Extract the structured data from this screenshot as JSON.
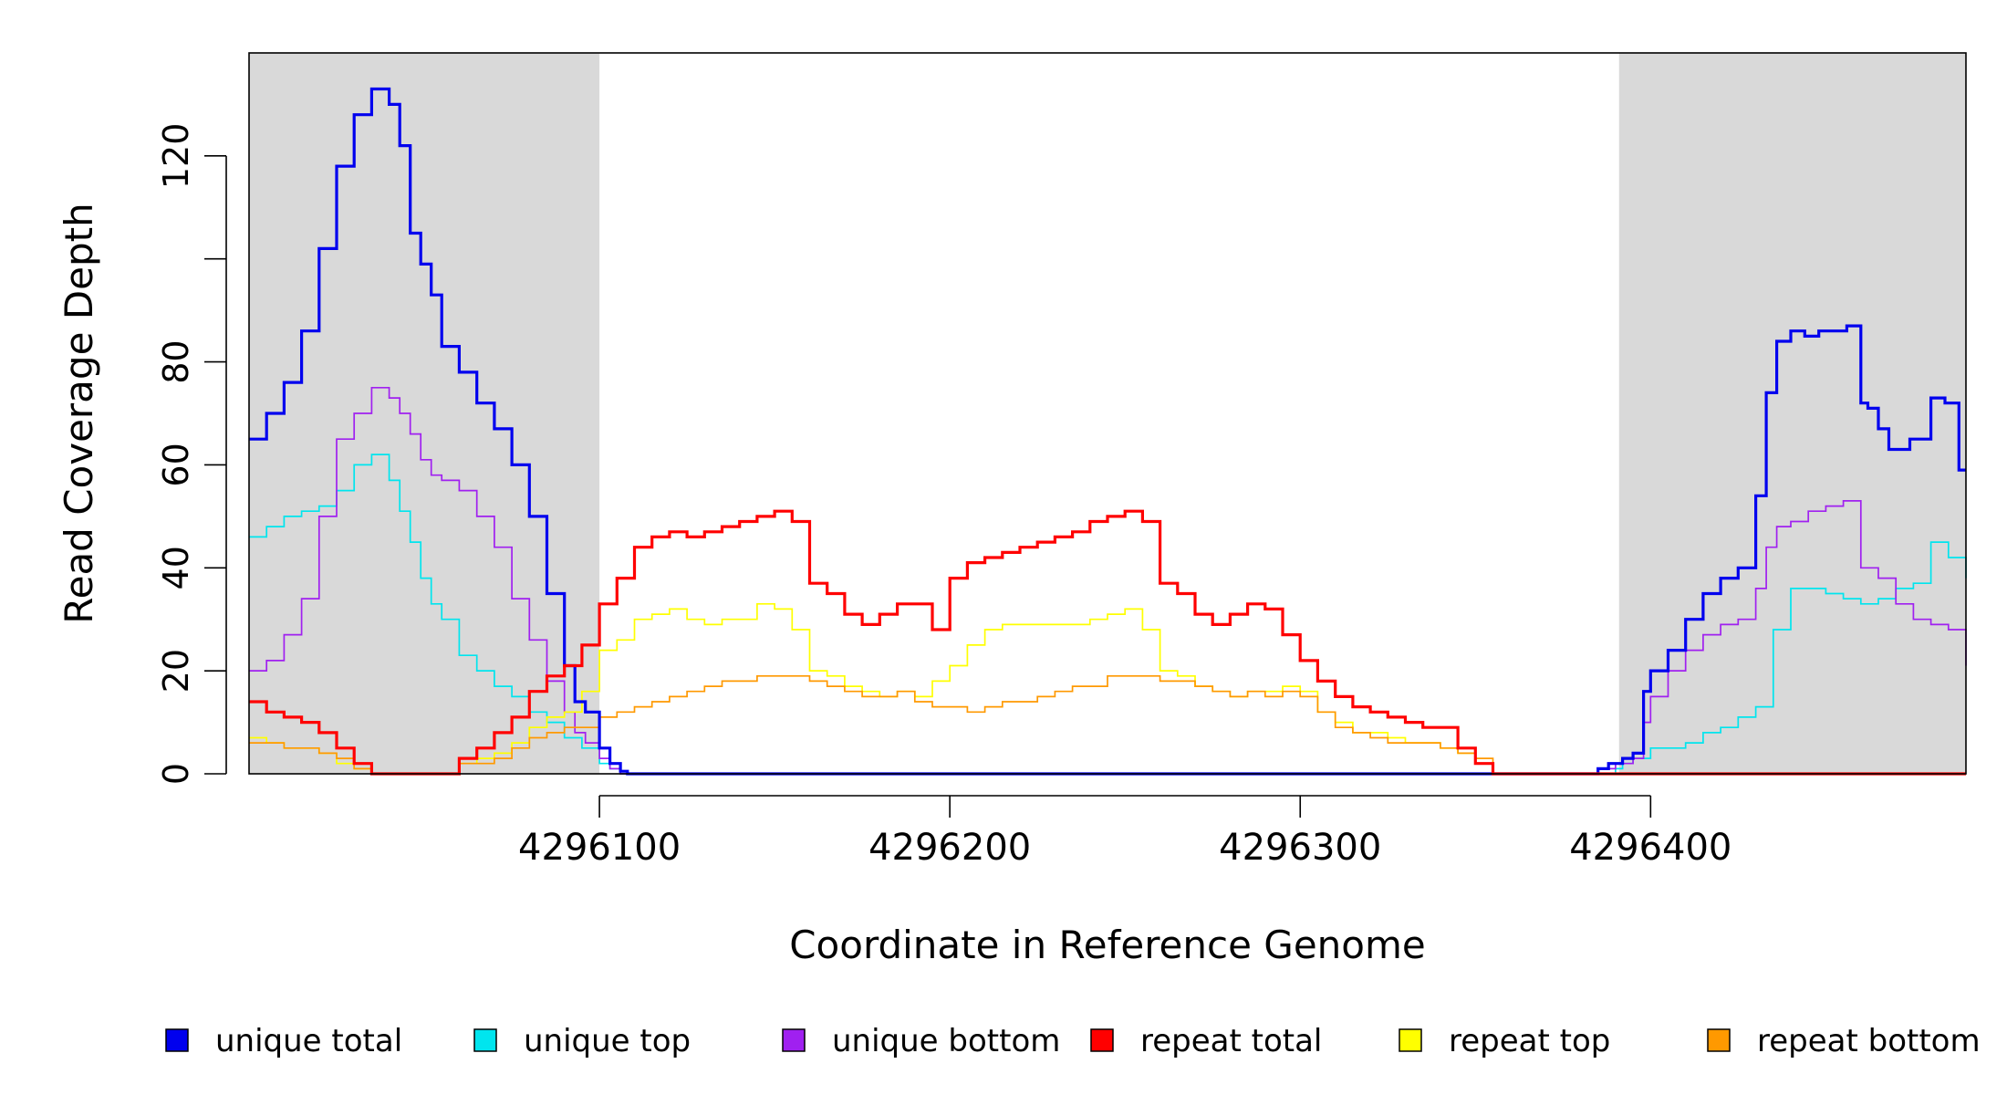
{
  "chart_data": {
    "type": "line",
    "title": "",
    "xlabel": "Coordinate in Reference Genome",
    "ylabel": "Read Coverage Depth",
    "xlim": [
      4296000,
      4296490
    ],
    "ylim": [
      0,
      140
    ],
    "x_ticks": [
      4296100,
      4296200,
      4296300,
      4296400
    ],
    "x_tick_labels": [
      "4296100",
      "4296200",
      "4296300",
      "4296400"
    ],
    "y_ticks": [
      0,
      20,
      40,
      60,
      80,
      100,
      120
    ],
    "y_tick_labels": [
      "0",
      "20",
      "40",
      "60",
      "80",
      "",
      "120"
    ],
    "shaded_regions": [
      {
        "x_start": 4296000,
        "x_end": 4296100,
        "color": "#d9d9d9"
      },
      {
        "x_start": 4296391,
        "x_end": 4296490,
        "color": "#d9d9d9"
      }
    ],
    "grid": false,
    "legend_position": "bottom",
    "series": [
      {
        "name": "unique total",
        "color": "#0000ee",
        "width": 3.2,
        "x": [
          4296000,
          4296005,
          4296010,
          4296015,
          4296020,
          4296025,
          4296030,
          4296035,
          4296040,
          4296043,
          4296046,
          4296049,
          4296052,
          4296055,
          4296060,
          4296065,
          4296070,
          4296075,
          4296080,
          4296085,
          4296090,
          4296093,
          4296096,
          4296100,
          4296103,
          4296106,
          4296108,
          4296110,
          4296112,
          4296115,
          4296385,
          4296388,
          4296392,
          4296395,
          4296398,
          4296400,
          4296405,
          4296410,
          4296415,
          4296420,
          4296425,
          4296430,
          4296433,
          4296436,
          4296440,
          4296444,
          4296448,
          4296452,
          4296456,
          4296460,
          4296462,
          4296465,
          4296468,
          4296471,
          4296474,
          4296477,
          4296480,
          4296484,
          4296488,
          4296490
        ],
        "y": [
          65,
          70,
          76,
          86,
          102,
          118,
          128,
          133,
          130,
          122,
          105,
          99,
          93,
          83,
          78,
          72,
          67,
          60,
          50,
          35,
          21,
          14,
          12,
          5,
          2,
          0.5,
          0,
          0,
          0,
          0,
          1,
          2,
          3,
          4,
          16,
          20,
          24,
          30,
          35,
          38,
          40,
          54,
          74,
          84,
          86,
          85,
          86,
          86,
          87,
          72,
          71,
          67,
          63,
          63,
          65,
          65,
          73,
          72,
          59,
          59
        ]
      },
      {
        "name": "unique top",
        "color": "#00e5ee",
        "width": 1.7,
        "x": [
          4296000,
          4296005,
          4296010,
          4296015,
          4296020,
          4296025,
          4296030,
          4296035,
          4296040,
          4296043,
          4296046,
          4296049,
          4296052,
          4296055,
          4296060,
          4296065,
          4296070,
          4296075,
          4296080,
          4296085,
          4296090,
          4296095,
          4296100,
          4296103,
          4296106,
          4296108,
          4296110,
          4296115,
          4296385,
          4296390,
          4296392,
          4296395,
          4296400,
          4296405,
          4296410,
          4296415,
          4296420,
          4296425,
          4296430,
          4296435,
          4296440,
          4296445,
          4296450,
          4296455,
          4296460,
          4296465,
          4296470,
          4296475,
          4296480,
          4296485,
          4296490
        ],
        "y": [
          46,
          48,
          50,
          51,
          52,
          55,
          60,
          62,
          57,
          51,
          45,
          38,
          33,
          30,
          23,
          20,
          17,
          15,
          12,
          10,
          7,
          5,
          2,
          1,
          0,
          0,
          0,
          0,
          0,
          1,
          2,
          3,
          5,
          5,
          6,
          8,
          9,
          11,
          13,
          28,
          36,
          36,
          35,
          34,
          33,
          34,
          36,
          37,
          45,
          42,
          38
        ]
      },
      {
        "name": "unique bottom",
        "color": "#a020f0",
        "width": 1.7,
        "x": [
          4296000,
          4296005,
          4296010,
          4296015,
          4296020,
          4296025,
          4296030,
          4296035,
          4296040,
          4296043,
          4296046,
          4296049,
          4296052,
          4296055,
          4296060,
          4296065,
          4296070,
          4296075,
          4296080,
          4296085,
          4296090,
          4296093,
          4296096,
          4296100,
          4296103,
          4296106,
          4296108,
          4296110,
          4296115,
          4296385,
          4296390,
          4296395,
          4296398,
          4296400,
          4296405,
          4296410,
          4296415,
          4296420,
          4296425,
          4296430,
          4296433,
          4296436,
          4296440,
          4296445,
          4296450,
          4296455,
          4296460,
          4296465,
          4296470,
          4296475,
          4296480,
          4296485,
          4296490
        ],
        "y": [
          20,
          22,
          27,
          34,
          50,
          65,
          70,
          75,
          73,
          70,
          66,
          61,
          58,
          57,
          55,
          50,
          44,
          34,
          26,
          18,
          12,
          8,
          6,
          3,
          1,
          0,
          0,
          0,
          0,
          1,
          2,
          3,
          10,
          15,
          20,
          24,
          27,
          29,
          30,
          36,
          44,
          48,
          49,
          51,
          52,
          53,
          40,
          38,
          33,
          30,
          29,
          28,
          21
        ]
      },
      {
        "name": "repeat total",
        "color": "#ff0000",
        "width": 3.2,
        "x": [
          4296000,
          4296005,
          4296010,
          4296015,
          4296020,
          4296025,
          4296030,
          4296035,
          4296040,
          4296055,
          4296060,
          4296065,
          4296070,
          4296075,
          4296080,
          4296085,
          4296090,
          4296095,
          4296100,
          4296105,
          4296110,
          4296115,
          4296120,
          4296125,
          4296130,
          4296135,
          4296140,
          4296145,
          4296150,
          4296155,
          4296160,
          4296165,
          4296170,
          4296175,
          4296180,
          4296185,
          4296190,
          4296195,
          4296200,
          4296205,
          4296210,
          4296215,
          4296220,
          4296225,
          4296230,
          4296235,
          4296240,
          4296245,
          4296250,
          4296255,
          4296260,
          4296265,
          4296270,
          4296275,
          4296280,
          4296285,
          4296290,
          4296295,
          4296300,
          4296305,
          4296310,
          4296315,
          4296320,
          4296325,
          4296330,
          4296335,
          4296340,
          4296345,
          4296350,
          4296355,
          4296360,
          4296365,
          4296370,
          4296375,
          4296380,
          4296385,
          4296490
        ],
        "y": [
          14,
          12,
          11,
          10,
          8,
          5,
          2,
          0,
          0,
          0,
          3,
          5,
          8,
          11,
          16,
          19,
          21,
          25,
          33,
          38,
          44,
          46,
          47,
          46,
          47,
          48,
          49,
          50,
          51,
          49,
          37,
          35,
          31,
          29,
          31,
          33,
          33,
          28,
          38,
          41,
          42,
          43,
          44,
          45,
          46,
          47,
          49,
          50,
          51,
          49,
          37,
          35,
          31,
          29,
          31,
          33,
          32,
          27,
          22,
          18,
          15,
          13,
          12,
          11,
          10,
          9,
          9,
          5,
          2,
          0,
          0,
          0,
          0,
          0,
          0,
          0,
          0
        ]
      },
      {
        "name": "repeat top",
        "color": "#ffff00",
        "width": 1.7,
        "x": [
          4296000,
          4296005,
          4296010,
          4296015,
          4296020,
          4296025,
          4296030,
          4296035,
          4296040,
          4296055,
          4296060,
          4296065,
          4296070,
          4296075,
          4296080,
          4296085,
          4296090,
          4296095,
          4296100,
          4296105,
          4296110,
          4296115,
          4296120,
          4296125,
          4296130,
          4296135,
          4296140,
          4296145,
          4296150,
          4296155,
          4296160,
          4296165,
          4296170,
          4296175,
          4296180,
          4296185,
          4296190,
          4296195,
          4296200,
          4296205,
          4296210,
          4296215,
          4296220,
          4296225,
          4296230,
          4296235,
          4296240,
          4296245,
          4296250,
          4296255,
          4296260,
          4296265,
          4296270,
          4296275,
          4296280,
          4296285,
          4296290,
          4296295,
          4296300,
          4296305,
          4296310,
          4296315,
          4296320,
          4296325,
          4296330,
          4296335,
          4296340,
          4296345,
          4296350,
          4296355,
          4296360,
          4296365,
          4296370,
          4296375,
          4296380,
          4296385,
          4296490
        ],
        "y": [
          7,
          6,
          5,
          5,
          4,
          2,
          1,
          0,
          0,
          0,
          2,
          3,
          4,
          6,
          9,
          11,
          12,
          16,
          24,
          26,
          30,
          31,
          32,
          30,
          29,
          30,
          30,
          33,
          32,
          28,
          20,
          19,
          17,
          16,
          15,
          16,
          15,
          18,
          21,
          25,
          28,
          29,
          29,
          29,
          29,
          29,
          30,
          31,
          32,
          28,
          20,
          19,
          17,
          16,
          15,
          16,
          16,
          17,
          16,
          12,
          10,
          8,
          8,
          7,
          6,
          6,
          5,
          4,
          2,
          0,
          0,
          0,
          0,
          0,
          0,
          0,
          0
        ]
      },
      {
        "name": "repeat bottom",
        "color": "#ff9900",
        "width": 1.7,
        "x": [
          4296000,
          4296005,
          4296010,
          4296015,
          4296020,
          4296025,
          4296030,
          4296035,
          4296040,
          4296055,
          4296060,
          4296065,
          4296070,
          4296075,
          4296080,
          4296085,
          4296090,
          4296095,
          4296100,
          4296105,
          4296110,
          4296115,
          4296120,
          4296125,
          4296130,
          4296135,
          4296140,
          4296145,
          4296150,
          4296155,
          4296160,
          4296165,
          4296170,
          4296175,
          4296180,
          4296185,
          4296190,
          4296195,
          4296200,
          4296205,
          4296210,
          4296215,
          4296220,
          4296225,
          4296230,
          4296235,
          4296240,
          4296245,
          4296250,
          4296255,
          4296260,
          4296265,
          4296270,
          4296275,
          4296280,
          4296285,
          4296290,
          4296295,
          4296300,
          4296305,
          4296310,
          4296315,
          4296320,
          4296325,
          4296330,
          4296335,
          4296340,
          4296345,
          4296350,
          4296355,
          4296360,
          4296365,
          4296370,
          4296375,
          4296380,
          4296385,
          4296490
        ],
        "y": [
          6,
          6,
          5,
          5,
          4,
          3,
          1,
          0,
          0,
          0,
          2,
          2,
          3,
          5,
          7,
          8,
          9,
          9,
          11,
          12,
          13,
          14,
          15,
          16,
          17,
          18,
          18,
          19,
          19,
          19,
          18,
          17,
          16,
          15,
          15,
          16,
          14,
          13,
          13,
          12,
          13,
          14,
          14,
          15,
          16,
          17,
          17,
          19,
          19,
          19,
          18,
          18,
          17,
          16,
          15,
          16,
          15,
          16,
          15,
          12,
          9,
          8,
          7,
          6,
          6,
          6,
          5,
          4,
          3,
          0,
          0,
          0,
          0,
          0,
          0,
          0,
          0
        ]
      }
    ]
  }
}
